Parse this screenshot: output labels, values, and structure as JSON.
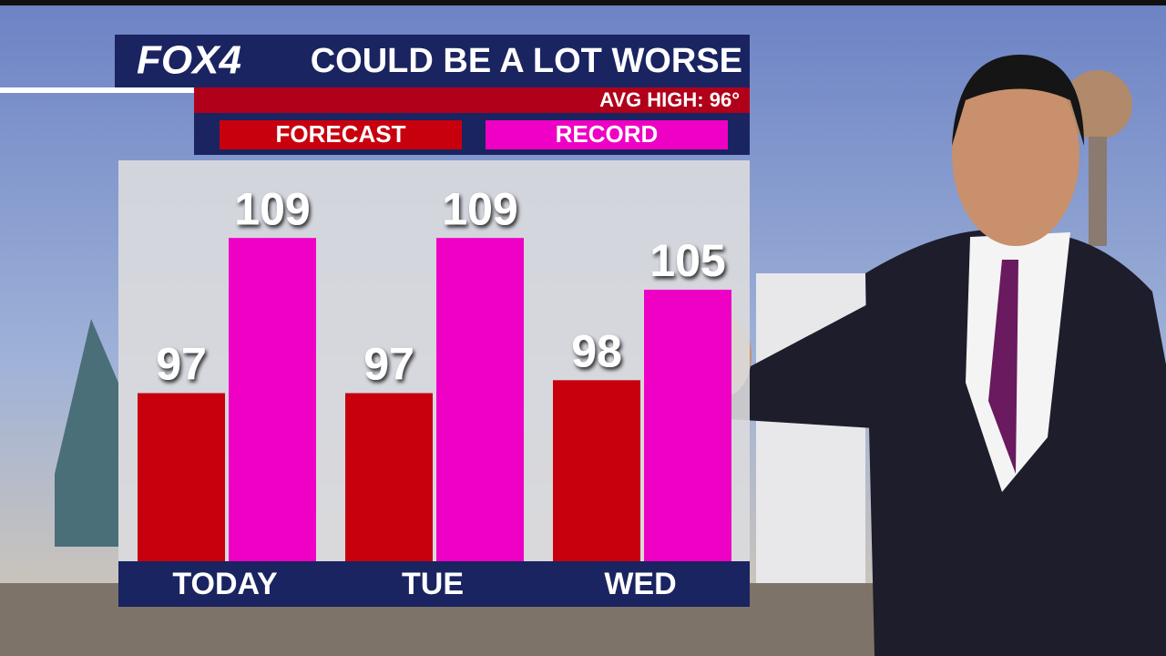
{
  "logo": "FOX4",
  "chart_data": {
    "type": "bar",
    "title": "COULD BE A LOT WORSE",
    "annotation": "AVG HIGH: 96°",
    "categories": [
      "TODAY",
      "TUE",
      "WED"
    ],
    "series": [
      {
        "name": "FORECAST",
        "color": "#c8000e",
        "values": [
          97,
          97,
          98
        ]
      },
      {
        "name": "RECORD",
        "color": "#ee00c4",
        "values": [
          109,
          109,
          105
        ]
      }
    ],
    "ylim": [
      84,
      115
    ]
  }
}
